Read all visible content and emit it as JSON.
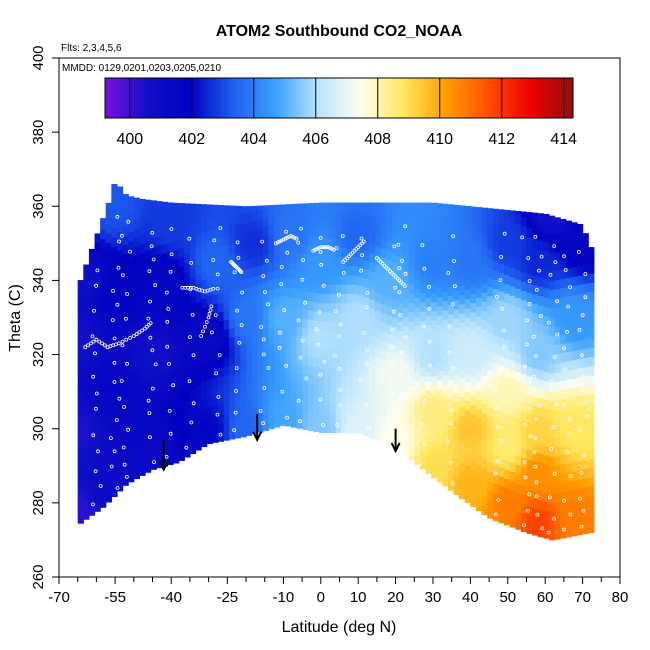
{
  "chart_data": {
    "type": "heatmap",
    "title": "ATOM2 Southbound CO2_NOAA",
    "subtitle_lines": [
      "Flts: 2,3,4,5,6",
      "MMDD: 0129,0201,0203,0205,0210"
    ],
    "xlabel": "Latitude (deg N)",
    "ylabel": "Theta (C)",
    "xlim": [
      -70,
      80
    ],
    "ylim": [
      260,
      400
    ],
    "x_ticks": [
      -70,
      -55,
      -40,
      -25,
      -10,
      0,
      10,
      20,
      30,
      40,
      50,
      60,
      70,
      80
    ],
    "y_ticks": [
      260,
      280,
      300,
      320,
      340,
      360,
      380,
      400
    ],
    "colorbar": {
      "min": 399.2,
      "max": 414.3,
      "ticks": [
        400,
        402,
        404,
        406,
        408,
        410,
        412,
        414
      ],
      "colors": [
        "#7a10e0",
        "#1010c8",
        "#0000c0",
        "#1e5ef0",
        "#3aa0ff",
        "#b8e4ff",
        "#fffff0",
        "#ffe860",
        "#ffa000",
        "#ff5000",
        "#f00000",
        "#8c1010"
      ]
    },
    "data_domain": {
      "top_boundary": [
        [
          -65,
          338
        ],
        [
          -60,
          352
        ],
        [
          -56,
          363
        ],
        [
          -55,
          367
        ],
        [
          -52,
          363
        ],
        [
          -48,
          362
        ],
        [
          -40,
          361
        ],
        [
          -20,
          360
        ],
        [
          0,
          361
        ],
        [
          30,
          361
        ],
        [
          60,
          358
        ],
        [
          70,
          355
        ],
        [
          72,
          349
        ]
      ],
      "bottom_boundary": [
        [
          -65,
          274
        ],
        [
          -58,
          279
        ],
        [
          -52,
          285
        ],
        [
          -45,
          289
        ],
        [
          -38,
          291
        ],
        [
          -30,
          296
        ],
        [
          -20,
          298
        ],
        [
          -10,
          301
        ],
        [
          0,
          299
        ],
        [
          10,
          299
        ],
        [
          20,
          295
        ],
        [
          30,
          287
        ],
        [
          38,
          281
        ],
        [
          45,
          276
        ],
        [
          55,
          272
        ],
        [
          62,
          270
        ],
        [
          72,
          272
        ]
      ]
    },
    "field_anchors": [
      [
        -66,
        276,
        400.2
      ],
      [
        -66,
        300,
        400.4
      ],
      [
        -66,
        325,
        400.5
      ],
      [
        -64,
        340,
        400.8
      ],
      [
        -55,
        285,
        401.0
      ],
      [
        -55,
        310,
        401.5
      ],
      [
        -55,
        335,
        401.8
      ],
      [
        -55,
        360,
        403.2
      ],
      [
        -45,
        292,
        401.2
      ],
      [
        -45,
        320,
        400.6
      ],
      [
        -42,
        340,
        401.5
      ],
      [
        -40,
        355,
        402.8
      ],
      [
        -30,
        300,
        402.0
      ],
      [
        -30,
        325,
        401.2
      ],
      [
        -28,
        345,
        403.5
      ],
      [
        -20,
        300,
        403.5
      ],
      [
        -20,
        330,
        403.8
      ],
      [
        -18,
        350,
        402.6
      ],
      [
        -10,
        302,
        404.8
      ],
      [
        -10,
        330,
        405.0
      ],
      [
        -8,
        352,
        403.8
      ],
      [
        0,
        300,
        405.5
      ],
      [
        0,
        325,
        406.0
      ],
      [
        0,
        345,
        404.5
      ],
      [
        10,
        300,
        406.8
      ],
      [
        10,
        330,
        406.0
      ],
      [
        10,
        352,
        403.5
      ],
      [
        20,
        296,
        407.5
      ],
      [
        20,
        315,
        407.2
      ],
      [
        18,
        340,
        405.0
      ],
      [
        30,
        290,
        409.0
      ],
      [
        30,
        305,
        408.5
      ],
      [
        30,
        320,
        406.0
      ],
      [
        30,
        345,
        404.0
      ],
      [
        40,
        285,
        409.8
      ],
      [
        40,
        300,
        409.5
      ],
      [
        40,
        320,
        406.5
      ],
      [
        40,
        345,
        403.8
      ],
      [
        50,
        280,
        410.8
      ],
      [
        50,
        295,
        408.6
      ],
      [
        50,
        310,
        408.0
      ],
      [
        50,
        330,
        405.8
      ],
      [
        50,
        350,
        402.8
      ],
      [
        58,
        275,
        411.8
      ],
      [
        58,
        288,
        410.5
      ],
      [
        58,
        300,
        409.2
      ],
      [
        58,
        320,
        405.5
      ],
      [
        58,
        345,
        402.5
      ],
      [
        62,
        358,
        400.5
      ],
      [
        68,
        276,
        410.8
      ],
      [
        68,
        300,
        408.8
      ],
      [
        68,
        330,
        404.5
      ],
      [
        70,
        350,
        401.5
      ]
    ],
    "flight_tracks": [
      {
        "x": [
          -63,
          -60,
          -57,
          -54,
          -50,
          -47,
          -45
        ],
        "y": [
          322,
          324,
          322,
          323,
          325,
          327,
          329
        ]
      },
      {
        "x": [
          -37,
          -34,
          -31,
          -28
        ],
        "y": [
          338,
          338,
          337,
          338
        ]
      },
      {
        "x": [
          -12,
          -10,
          -8,
          -6
        ],
        "y": [
          350,
          351,
          352,
          351
        ]
      },
      {
        "x": [
          -32,
          -30,
          -29
        ],
        "y": [
          325,
          330,
          334
        ]
      },
      {
        "x": [
          -24,
          -23,
          -22,
          -21
        ],
        "y": [
          345,
          344,
          343,
          342
        ]
      },
      {
        "x": [
          -2,
          0,
          2,
          4
        ],
        "y": [
          348,
          349,
          349,
          348
        ]
      },
      {
        "x": [
          6,
          8,
          10,
          12
        ],
        "y": [
          345,
          347,
          349,
          351
        ]
      },
      {
        "x": [
          15,
          17,
          19,
          21,
          23
        ],
        "y": [
          346,
          344,
          342,
          340,
          338
        ]
      }
    ],
    "profile_columns": [
      -67,
      -60,
      -55,
      -52,
      -45,
      -40,
      -35,
      -28,
      -22,
      -15,
      -10,
      -5,
      0,
      5,
      12,
      20,
      22,
      28,
      35,
      48,
      55,
      58,
      62,
      66,
      70
    ],
    "arrows": [
      {
        "x": -42,
        "y_top": 297,
        "y_tip": 289
      },
      {
        "x": -17,
        "y_top": 304,
        "y_tip": 297
      },
      {
        "x": 20,
        "y_top": 300,
        "y_tip": 294
      }
    ],
    "grid": false
  }
}
